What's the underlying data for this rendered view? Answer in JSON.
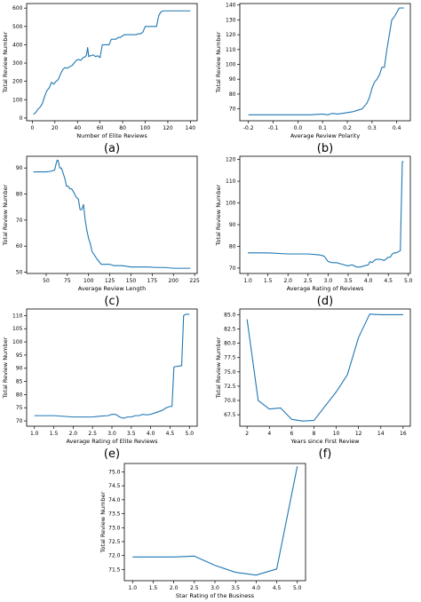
{
  "colors": {
    "line": "#1f77b4"
  },
  "chart_data": [
    {
      "type": "line",
      "panel_label": "(a)",
      "xlabel": "Number of Elite Reviews",
      "ylabel": "Total Review Number",
      "xlim": [
        -5,
        146
      ],
      "ylim": [
        -15,
        625
      ],
      "xticks": [
        0,
        20,
        40,
        60,
        80,
        100,
        120,
        140
      ],
      "yticks": [
        0,
        100,
        200,
        300,
        400,
        500,
        600
      ],
      "x": [
        1,
        3,
        5,
        7,
        9,
        11,
        13,
        15,
        17,
        19,
        21,
        23,
        25,
        27,
        29,
        31,
        33,
        35,
        37,
        39,
        41,
        43,
        45,
        47,
        48,
        49,
        50,
        51,
        52,
        54,
        56,
        58,
        60,
        62,
        64,
        66,
        68,
        70,
        72,
        74,
        76,
        78,
        80,
        82,
        84,
        86,
        88,
        90,
        92,
        94,
        96,
        98,
        100,
        102,
        104,
        106,
        108,
        110,
        112,
        114,
        116,
        118,
        120,
        125,
        130,
        135,
        140
      ],
      "y": [
        20,
        30,
        48,
        60,
        80,
        120,
        150,
        165,
        195,
        185,
        200,
        210,
        240,
        265,
        275,
        272,
        280,
        285,
        300,
        315,
        320,
        315,
        330,
        335,
        345,
        385,
        335,
        340,
        340,
        345,
        335,
        340,
        330,
        400,
        400,
        400,
        400,
        430,
        430,
        430,
        440,
        440,
        450,
        455,
        455,
        455,
        455,
        455,
        455,
        460,
        460,
        470,
        500,
        500,
        500,
        500,
        500,
        500,
        560,
        580,
        585,
        585,
        585,
        585,
        585,
        585,
        585
      ]
    },
    {
      "type": "line",
      "panel_label": "(b)",
      "xlabel": "Average Review Polarity",
      "ylabel": "Total Review Number",
      "xlim": [
        -0.235,
        0.455
      ],
      "ylim": [
        62,
        141
      ],
      "xticks": [
        -0.2,
        -0.1,
        0.0,
        0.1,
        0.2,
        0.3,
        0.4
      ],
      "yticks": [
        70,
        80,
        90,
        100,
        110,
        120,
        130,
        140
      ],
      "x": [
        -0.2,
        -0.15,
        -0.1,
        -0.05,
        0.0,
        0.05,
        0.1,
        0.12,
        0.14,
        0.16,
        0.18,
        0.2,
        0.22,
        0.24,
        0.26,
        0.27,
        0.28,
        0.29,
        0.3,
        0.31,
        0.32,
        0.33,
        0.34,
        0.35,
        0.36,
        0.37,
        0.38,
        0.39,
        0.4,
        0.41,
        0.42,
        0.43
      ],
      "y": [
        66,
        66,
        66,
        66,
        66,
        66,
        66.5,
        66,
        67,
        66.5,
        67,
        67.5,
        68,
        69,
        70,
        72,
        74,
        78,
        84,
        88,
        90,
        93,
        98,
        98,
        110,
        120,
        130,
        132,
        135,
        138,
        138,
        138
      ]
    },
    {
      "type": "line",
      "panel_label": "(c)",
      "xlabel": "Average Review Length",
      "ylabel": "Total Review Number",
      "xlim": [
        27,
        228
      ],
      "ylim": [
        49.5,
        94.5
      ],
      "xticks": [
        50,
        75,
        100,
        125,
        150,
        175,
        200,
        225
      ],
      "yticks": [
        50,
        60,
        70,
        80,
        90
      ],
      "x": [
        35,
        40,
        45,
        50,
        55,
        58,
        60,
        62,
        63,
        64,
        65,
        66,
        68,
        70,
        72,
        74,
        76,
        78,
        80,
        82,
        85,
        88,
        90,
        92,
        94,
        96,
        98,
        100,
        102,
        104,
        106,
        108,
        110,
        115,
        120,
        125,
        130,
        140,
        150,
        160,
        170,
        180,
        190,
        200,
        210,
        220
      ],
      "y": [
        88.5,
        88.5,
        88.5,
        88.5,
        88.7,
        89,
        89.2,
        92,
        93,
        93,
        91.5,
        90,
        90,
        88,
        86,
        83,
        83,
        82,
        82,
        81,
        79,
        78,
        74,
        74,
        76,
        70,
        66,
        63,
        61,
        58,
        57,
        56,
        55,
        53,
        53,
        53,
        52.5,
        52.5,
        52,
        52,
        52,
        51.8,
        51.8,
        51.5,
        51.5,
        51.5
      ]
    },
    {
      "type": "line",
      "panel_label": "(d)",
      "xlabel": "Average Rating of Reviews",
      "ylabel": "Total Review Number",
      "xlim": [
        0.8,
        5.05
      ],
      "ylim": [
        67.5,
        121.5
      ],
      "xticks": [
        1.0,
        1.5,
        2.0,
        2.5,
        3.0,
        3.5,
        4.0,
        4.5,
        5.0
      ],
      "yticks": [
        70,
        80,
        90,
        100,
        110,
        120
      ],
      "x": [
        1.0,
        1.5,
        2.0,
        2.5,
        2.8,
        2.9,
        3.0,
        3.1,
        3.2,
        3.3,
        3.4,
        3.5,
        3.6,
        3.7,
        3.8,
        3.9,
        4.0,
        4.05,
        4.1,
        4.15,
        4.2,
        4.3,
        4.4,
        4.5,
        4.55,
        4.6,
        4.65,
        4.7,
        4.75,
        4.8,
        4.85,
        4.88
      ],
      "y": [
        77,
        77,
        76.5,
        76.5,
        76,
        75.5,
        73,
        72.5,
        72.5,
        72,
        71.5,
        71,
        71.5,
        70.5,
        70.5,
        71,
        71.5,
        73,
        72.5,
        73.5,
        74,
        74,
        73.5,
        75,
        75,
        76.5,
        77,
        77,
        77.5,
        78,
        119,
        119
      ]
    },
    {
      "type": "line",
      "panel_label": "(e)",
      "xlabel": "Average Rating of Elite Reviews",
      "ylabel": "Total Review Number",
      "xlim": [
        0.8,
        5.2
      ],
      "ylim": [
        68,
        112.5
      ],
      "xticks": [
        1.0,
        1.5,
        2.0,
        2.5,
        3.0,
        3.5,
        4.0,
        4.5,
        5.0
      ],
      "yticks": [
        70,
        75,
        80,
        85,
        90,
        95,
        100,
        105,
        110
      ],
      "x": [
        1.0,
        1.5,
        2.0,
        2.5,
        2.7,
        2.9,
        3.0,
        3.1,
        3.2,
        3.3,
        3.4,
        3.5,
        3.6,
        3.7,
        3.8,
        3.9,
        4.0,
        4.1,
        4.2,
        4.3,
        4.4,
        4.5,
        4.55,
        4.6,
        4.8,
        4.85,
        4.9,
        5.0
      ],
      "y": [
        72,
        72,
        71.5,
        71.5,
        71.8,
        72,
        72.5,
        72.5,
        71.5,
        71,
        71.5,
        71.5,
        72,
        72,
        72.5,
        72.3,
        72.5,
        73,
        73.5,
        74,
        75,
        75.5,
        75.5,
        90.5,
        91,
        110,
        110.5,
        110.5
      ]
    },
    {
      "type": "line",
      "panel_label": "(f)",
      "xlabel": "Years since First Review",
      "ylabel": "Total Review Number",
      "xlim": [
        1.35,
        16.65
      ],
      "ylim": [
        65.5,
        86
      ],
      "xticks": [
        2,
        4,
        6,
        8,
        10,
        12,
        14,
        16
      ],
      "yticks": [
        67.5,
        70.0,
        72.5,
        75.0,
        77.5,
        80.0,
        82.5,
        85.0
      ],
      "x": [
        2,
        3,
        4,
        5,
        6,
        7,
        8,
        9,
        10,
        11,
        12,
        13,
        14,
        15,
        16
      ],
      "y": [
        84.2,
        70,
        68.5,
        68.7,
        66.7,
        66.4,
        66.5,
        69,
        71.5,
        74.5,
        81,
        85.1,
        85,
        85,
        85
      ]
    },
    {
      "type": "line",
      "panel_label": "(g)",
      "xlabel": "Star Rating of the Business",
      "ylabel": "Total Review Number",
      "xlim": [
        0.8,
        5.2
      ],
      "ylim": [
        71.1,
        75.3
      ],
      "xticks": [
        1.0,
        1.5,
        2.0,
        2.5,
        3.0,
        3.5,
        4.0,
        4.5,
        5.0
      ],
      "yticks": [
        71.5,
        72.0,
        72.5,
        73.0,
        73.5,
        74.0,
        74.5,
        75.0
      ],
      "x": [
        1.0,
        1.5,
        2.0,
        2.5,
        3.0,
        3.5,
        4.0,
        4.5,
        5.0
      ],
      "y": [
        71.95,
        71.95,
        71.95,
        71.98,
        71.65,
        71.4,
        71.3,
        71.52,
        75.2
      ]
    }
  ]
}
